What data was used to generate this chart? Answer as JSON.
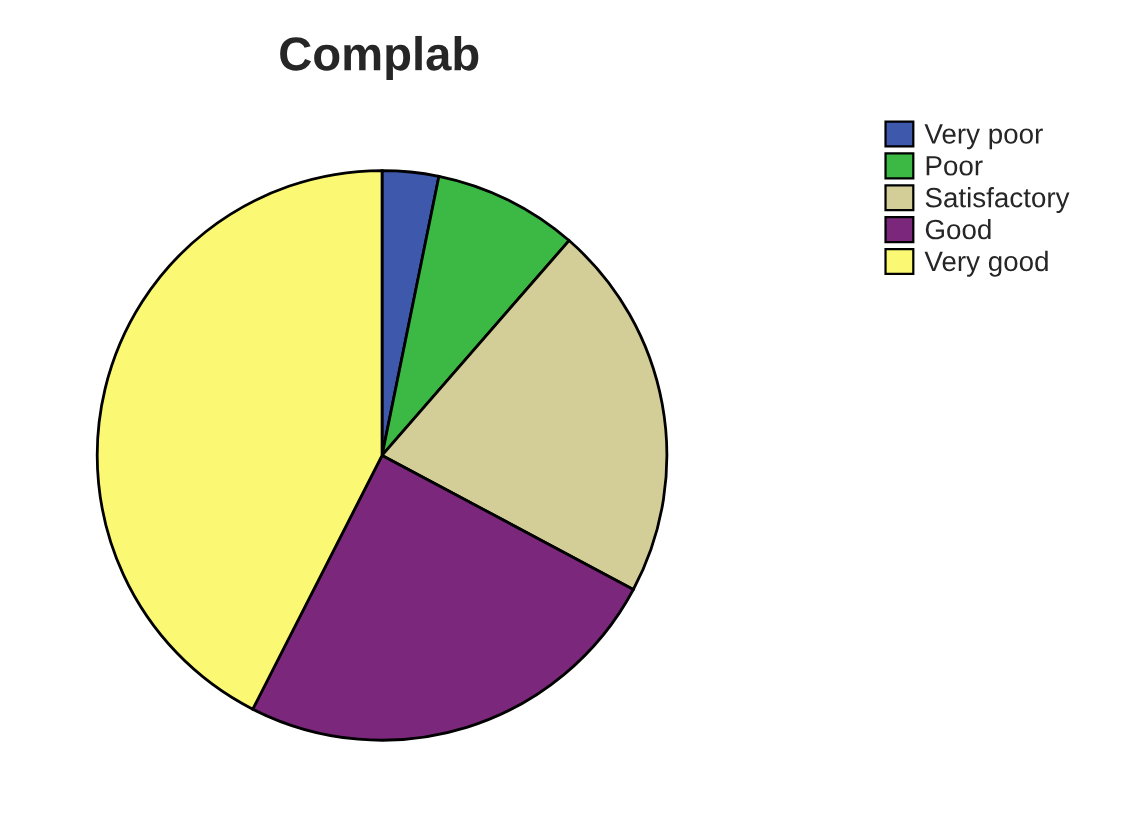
{
  "chart_data": {
    "type": "pie",
    "title": "Complab",
    "categories": [
      "Very poor",
      "Poor",
      "Satisfactory",
      "Good",
      "Very good"
    ],
    "values": [
      3.2,
      8.2,
      21.4,
      24.7,
      42.5
    ],
    "colors": [
      "#3e58ac",
      "#3cb944",
      "#d3ce97",
      "#7b287c",
      "#fbf873"
    ],
    "legend": "top right"
  }
}
